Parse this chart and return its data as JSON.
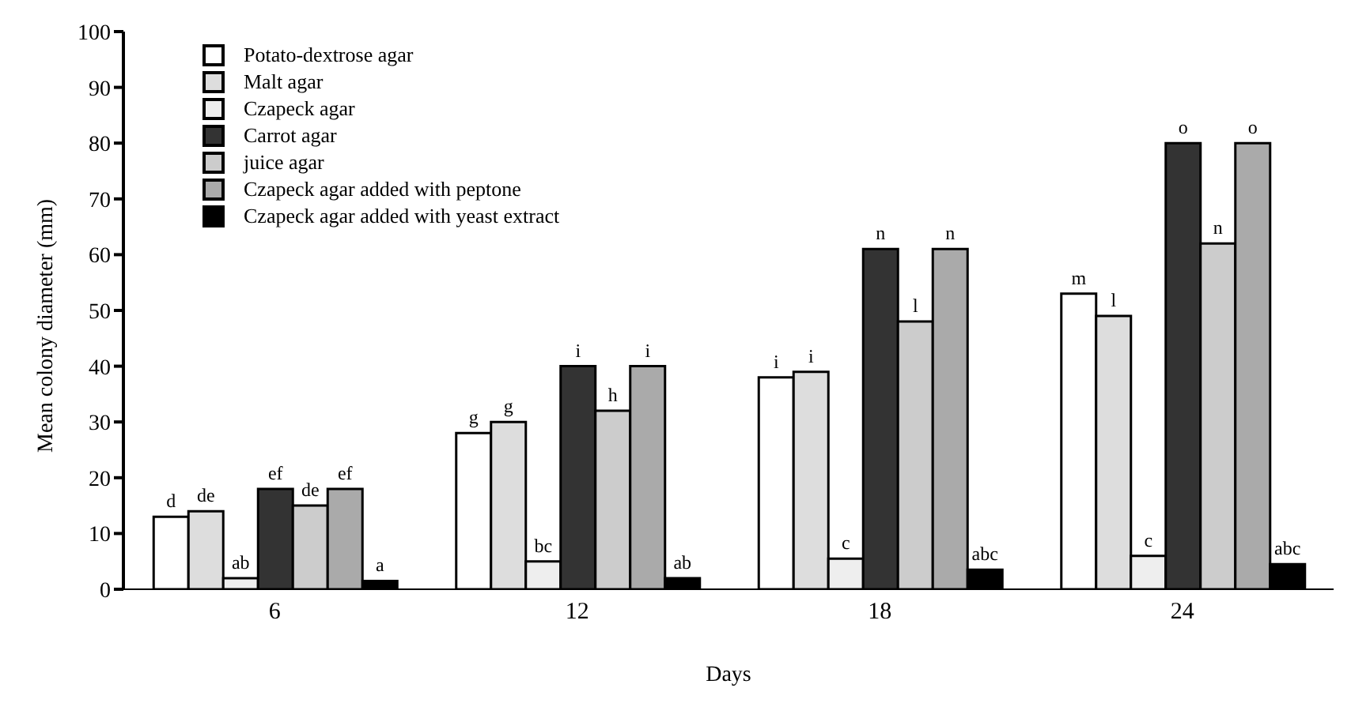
{
  "chart_data": {
    "type": "bar",
    "xlabel": "Days",
    "ylabel": "Mean colony diameter (mm)",
    "categories": [
      "6",
      "12",
      "18",
      "24"
    ],
    "ylim": [
      0,
      100
    ],
    "yticks": [
      0,
      10,
      20,
      30,
      40,
      50,
      60,
      70,
      80,
      90,
      100
    ],
    "grid": false,
    "legend": "top left",
    "series": [
      {
        "name": "Potato-dextrose agar",
        "color": "#ffffff",
        "values": [
          13,
          28,
          38,
          53
        ],
        "value_labels": [
          "d",
          "g",
          "i",
          "m"
        ]
      },
      {
        "name": "Malt agar",
        "color": "#dddddd",
        "values": [
          14,
          30,
          39,
          49
        ],
        "value_labels": [
          "de",
          "g",
          "i",
          "l"
        ]
      },
      {
        "name": "Czapeck agar",
        "color": "#eeeeee",
        "values": [
          2,
          5,
          5.5,
          6
        ],
        "value_labels": [
          "ab",
          "bc",
          "c",
          "c"
        ]
      },
      {
        "name": "Carrot agar",
        "color": "#333333",
        "values": [
          18,
          40,
          61,
          80
        ],
        "value_labels": [
          "ef",
          "i",
          "n",
          "o"
        ]
      },
      {
        "name": "juice agar",
        "color": "#cccccc",
        "values": [
          15,
          32,
          48,
          62
        ],
        "value_labels": [
          "de",
          "h",
          "l",
          "n"
        ]
      },
      {
        "name": "Czapeck agar added with peptone",
        "color": "#aaaaaa",
        "values": [
          18,
          40,
          61,
          80
        ],
        "value_labels": [
          "ef",
          "i",
          "n",
          "o"
        ]
      },
      {
        "name": "Czapeck agar added with yeast extract",
        "color": "#000000",
        "values": [
          1.5,
          2,
          3.5,
          4.5
        ],
        "value_labels": [
          "a",
          "ab",
          "abc",
          "abc"
        ]
      }
    ]
  }
}
